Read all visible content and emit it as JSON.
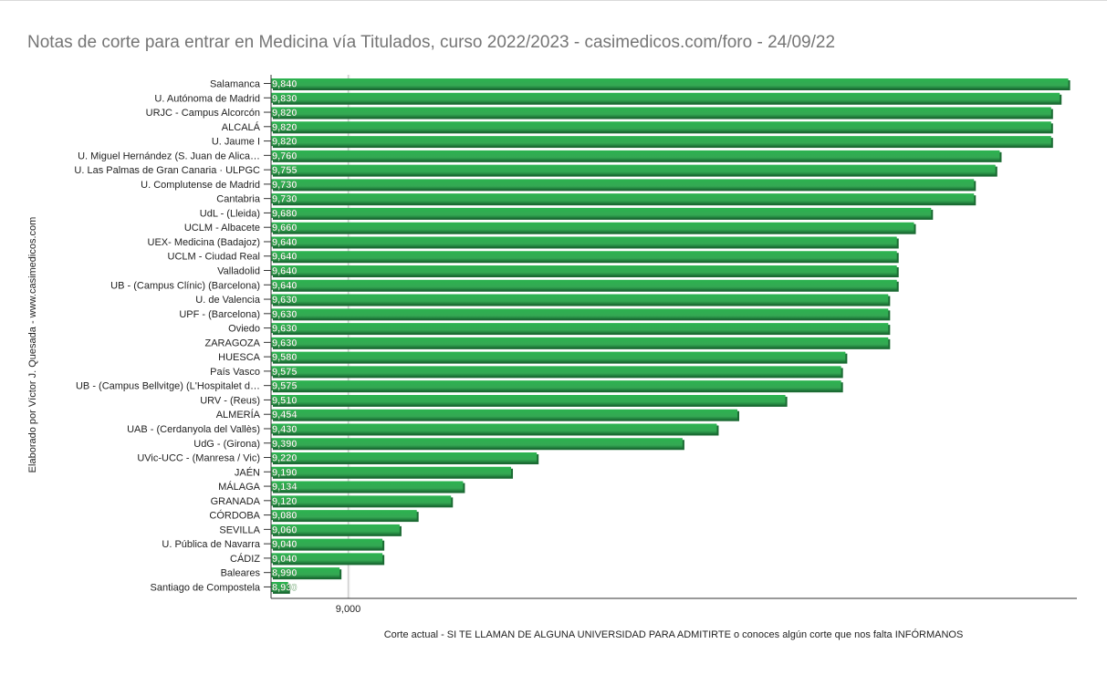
{
  "chart_data": {
    "type": "bar",
    "orientation": "horizontal",
    "title": "Notas de corte para entrar en Medicina vía Titulados, curso 2022/2023 - casimedicos.com/foro - 24/09/22",
    "ylabel": "Elaborado por Víctor J. Quesada - www.casimedicos.com",
    "xlabel": "Corte actual - SI TE LLAMAN DE ALGUNA UNIVERSIDAD PARA ADMITIRTE o conoces algún corte que nos falta INFÓRMANOS",
    "xlim": [
      8.91,
      9.85
    ],
    "xticks": [
      9.0
    ],
    "xtick_labels": [
      "9,000"
    ],
    "color": "#34a853",
    "legend": "none",
    "categories": [
      "Salamanca",
      "U. Autónoma de Madrid",
      "URJC - Campus Alcorcón",
      "ALCALÁ",
      "U. Jaume I",
      "U. Miguel Hernández (S. Juan de Alica…",
      "U. Las Palmas de Gran Canaria · ULPGC",
      "U. Complutense de Madrid",
      "Cantabria",
      "UdL - (Lleida)",
      "UCLM - Albacete",
      "UEX- Medicina (Badajoz)",
      "UCLM - Ciudad Real",
      "Valladolid",
      "UB - (Campus Clínic) (Barcelona)",
      "U. de Valencia",
      "UPF - (Barcelona)",
      "Oviedo",
      "ZARAGOZA",
      "HUESCA",
      "País Vasco",
      "UB - (Campus Bellvitge) (L'Hospitalet d…",
      "URV - (Reus)",
      "ALMERÍA",
      "UAB - (Cerdanyola del Vallès)",
      "UdG - (Girona)",
      "UVic-UCC - (Manresa / Vic)",
      "JAÉN",
      "MÁLAGA",
      "GRANADA",
      "CÓRDOBA",
      "SEVILLA",
      "U. Pública de Navarra",
      "CÁDIZ",
      "Baleares",
      "Santiago de Compostela"
    ],
    "values": [
      9.84,
      9.83,
      9.82,
      9.82,
      9.82,
      9.76,
      9.755,
      9.73,
      9.73,
      9.68,
      9.66,
      9.64,
      9.64,
      9.64,
      9.64,
      9.63,
      9.63,
      9.63,
      9.63,
      9.58,
      9.575,
      9.575,
      9.51,
      9.454,
      9.43,
      9.39,
      9.22,
      9.19,
      9.134,
      9.12,
      9.08,
      9.06,
      9.04,
      9.04,
      8.99,
      8.93
    ],
    "value_labels": [
      "9,840",
      "9,830",
      "9,820",
      "9,820",
      "9,820",
      "9,760",
      "9,755",
      "9,730",
      "9,730",
      "9,680",
      "9,660",
      "9,640",
      "9,640",
      "9,640",
      "9,640",
      "9,630",
      "9,630",
      "9,630",
      "9,630",
      "9,580",
      "9,575",
      "9,575",
      "9,510",
      "9,454",
      "9,430",
      "9,390",
      "9,220",
      "9,190",
      "9,134",
      "9,120",
      "9,080",
      "9,060",
      "9,040",
      "9,040",
      "8,990",
      "8,930"
    ]
  }
}
